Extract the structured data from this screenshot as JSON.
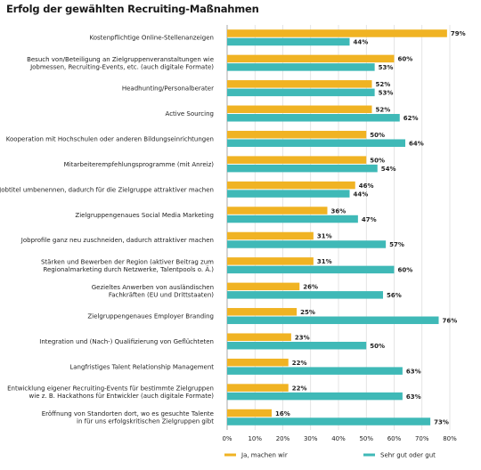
{
  "chart_data": {
    "type": "bar",
    "orientation": "horizontal",
    "title": "Erfolg der gewählten Recruiting-Maßnahmen",
    "categories": [
      [
        "Kostenpflichtige Online-Stellenanzeigen"
      ],
      [
        "Besuch von/Beteiligung an Zielgruppenveranstaltungen wie",
        "Jobmessen, Recruiting-Events, etc. (auch digitale Formate)"
      ],
      [
        "Headhunting/Personalberater"
      ],
      [
        "Active Sourcing"
      ],
      [
        "Kooperation mit Hochschulen oder anderen Bildungseinrichtungen"
      ],
      [
        "Mitarbeiterempfehlungsprogramme (mit Anreiz)"
      ],
      [
        "Jobtitel umbenennen, dadurch für die Zielgruppe attraktiver machen"
      ],
      [
        "Zielgruppengenaues Social Media Marketing"
      ],
      [
        "Jobprofile ganz neu zuschneiden, dadurch attraktiver machen"
      ],
      [
        "Stärken und Bewerben der Region (aktiver Beitrag zum",
        "Regionalmarketing durch Netzwerke, Talentpools o. Ä.)"
      ],
      [
        "Gezieltes Anwerben von ausländischen",
        "Fachkräften (EU und Drittstaaten)"
      ],
      [
        "Zielgruppengenaues Employer Branding"
      ],
      [
        "Integration und (Nach-) Qualifizierung von Geflüchteten"
      ],
      [
        "Langfristiges Talent Relationship Management"
      ],
      [
        "Entwicklung eigener Recruiting-Events für bestimmte Zielgruppen",
        "wie z. B. Hackathons für Entwickler (auch digitale Formate)"
      ],
      [
        "Eröffnung von Standorten dort, wo es gesuchte Talente",
        "in für uns erfolgskritischen Zielgruppen gibt"
      ]
    ],
    "series": [
      {
        "name": "Ja, machen wir",
        "color": "#f0b323",
        "values": [
          79,
          60,
          52,
          52,
          50,
          50,
          46,
          36,
          31,
          31,
          26,
          25,
          23,
          22,
          22,
          16
        ]
      },
      {
        "name": "Sehr gut oder gut",
        "color": "#3fb9b7",
        "values": [
          44,
          53,
          53,
          62,
          64,
          54,
          44,
          47,
          57,
          60,
          56,
          76,
          50,
          63,
          63,
          73
        ]
      }
    ],
    "value_suffix": "%",
    "xlim": [
      0,
      80
    ],
    "xticks": [
      "0%",
      "10%",
      "20%",
      "30%",
      "40%",
      "50%",
      "60%",
      "70%",
      "80%"
    ],
    "grid": true,
    "legend_position": "bottom"
  }
}
